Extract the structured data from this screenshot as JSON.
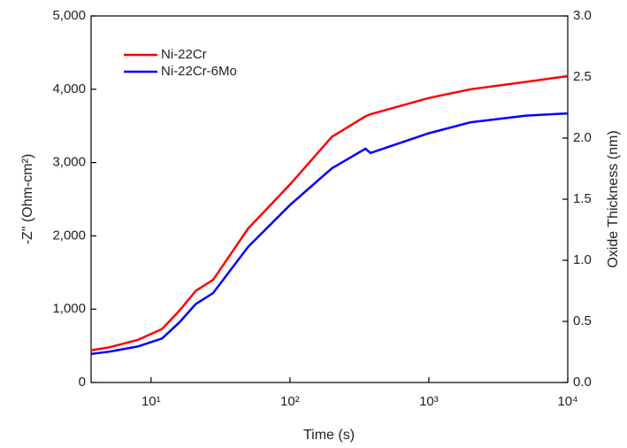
{
  "chart_data": {
    "type": "line",
    "x_label": "Time (s)",
    "y_label": "-Z\" (Ohm-cm²)",
    "y2_label": "Oxide Thickness (nm)",
    "x": [
      3.7,
      5,
      8,
      12,
      16,
      21,
      28,
      50,
      100,
      200,
      350,
      380,
      1000,
      2000,
      5000,
      10000
    ],
    "series": [
      {
        "name": "Ni-22Cr",
        "color": "#ff0000",
        "values": [
          440,
          480,
          580,
          730,
          980,
          1250,
          1400,
          2100,
          2700,
          3350,
          3630,
          3660,
          3880,
          4000,
          4100,
          4180
        ]
      },
      {
        "name": "Ni-22Cr-6Mo",
        "color": "#0000ff",
        "values": [
          390,
          420,
          490,
          600,
          820,
          1070,
          1220,
          1850,
          2420,
          2920,
          3190,
          3130,
          3400,
          3550,
          3640,
          3670
        ]
      }
    ],
    "x_log": true,
    "xlim": [
      3.7,
      10000
    ],
    "xticks": [
      {
        "value": 10,
        "label": "10¹"
      },
      {
        "value": 100,
        "label": "10²"
      },
      {
        "value": 1000,
        "label": "10³"
      },
      {
        "value": 10000,
        "label": "10⁴"
      }
    ],
    "ylim": [
      0,
      5000
    ],
    "yticks": [
      0,
      {
        "value": 1000,
        "label": "1,000"
      },
      {
        "value": 2000,
        "label": "2,000"
      },
      {
        "value": 3000,
        "label": "3,000"
      },
      {
        "value": 4000,
        "label": "4,000"
      },
      {
        "value": 5000,
        "label": "5,000"
      }
    ],
    "y2lim": [
      0,
      3
    ],
    "y2ticks": [
      {
        "value": 0,
        "label": "0.0"
      },
      0.5,
      {
        "value": 1,
        "label": "1.0"
      },
      1.5,
      {
        "value": 2,
        "label": "2.0"
      },
      2.5,
      {
        "value": 3,
        "label": "3.0"
      }
    ],
    "legend": "upper left"
  }
}
